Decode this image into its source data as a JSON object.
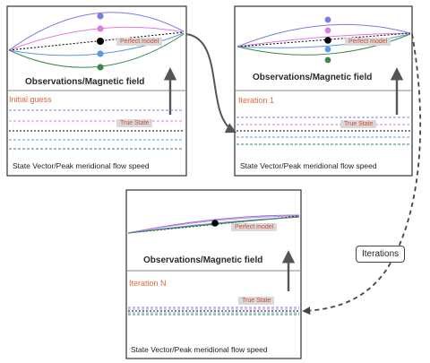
{
  "panels": [
    {
      "id": "initial",
      "heading": "Observations/Magnetic field",
      "footer": "State Vector/Peak meridional flow speed",
      "stage_label": "Initial guess",
      "model_tag": "Perfect model",
      "state_tag": "True State"
    },
    {
      "id": "iteration-1",
      "heading": "Observations/Magnetic field",
      "footer": "State Vector/Peak meridional flow speed",
      "stage_label": "Iteration 1",
      "model_tag": "Perfect model",
      "state_tag": "True State"
    },
    {
      "id": "iteration-n",
      "heading": "Observations/Magnetic field",
      "footer": "State Vector/Peak meridional flow speed",
      "stage_label": "Iteration N",
      "model_tag": "Perfect model",
      "state_tag": "True State"
    }
  ],
  "connector_label": "Iterations",
  "colors": {
    "frame": "#333333",
    "divider": "#888888",
    "stage_label": "#e2683f",
    "ensemble": [
      "#7b7be0",
      "#e07be0",
      "#5a9ae0",
      "#3a8a4a"
    ],
    "truth": "#000000",
    "arrow": "#555555"
  }
}
